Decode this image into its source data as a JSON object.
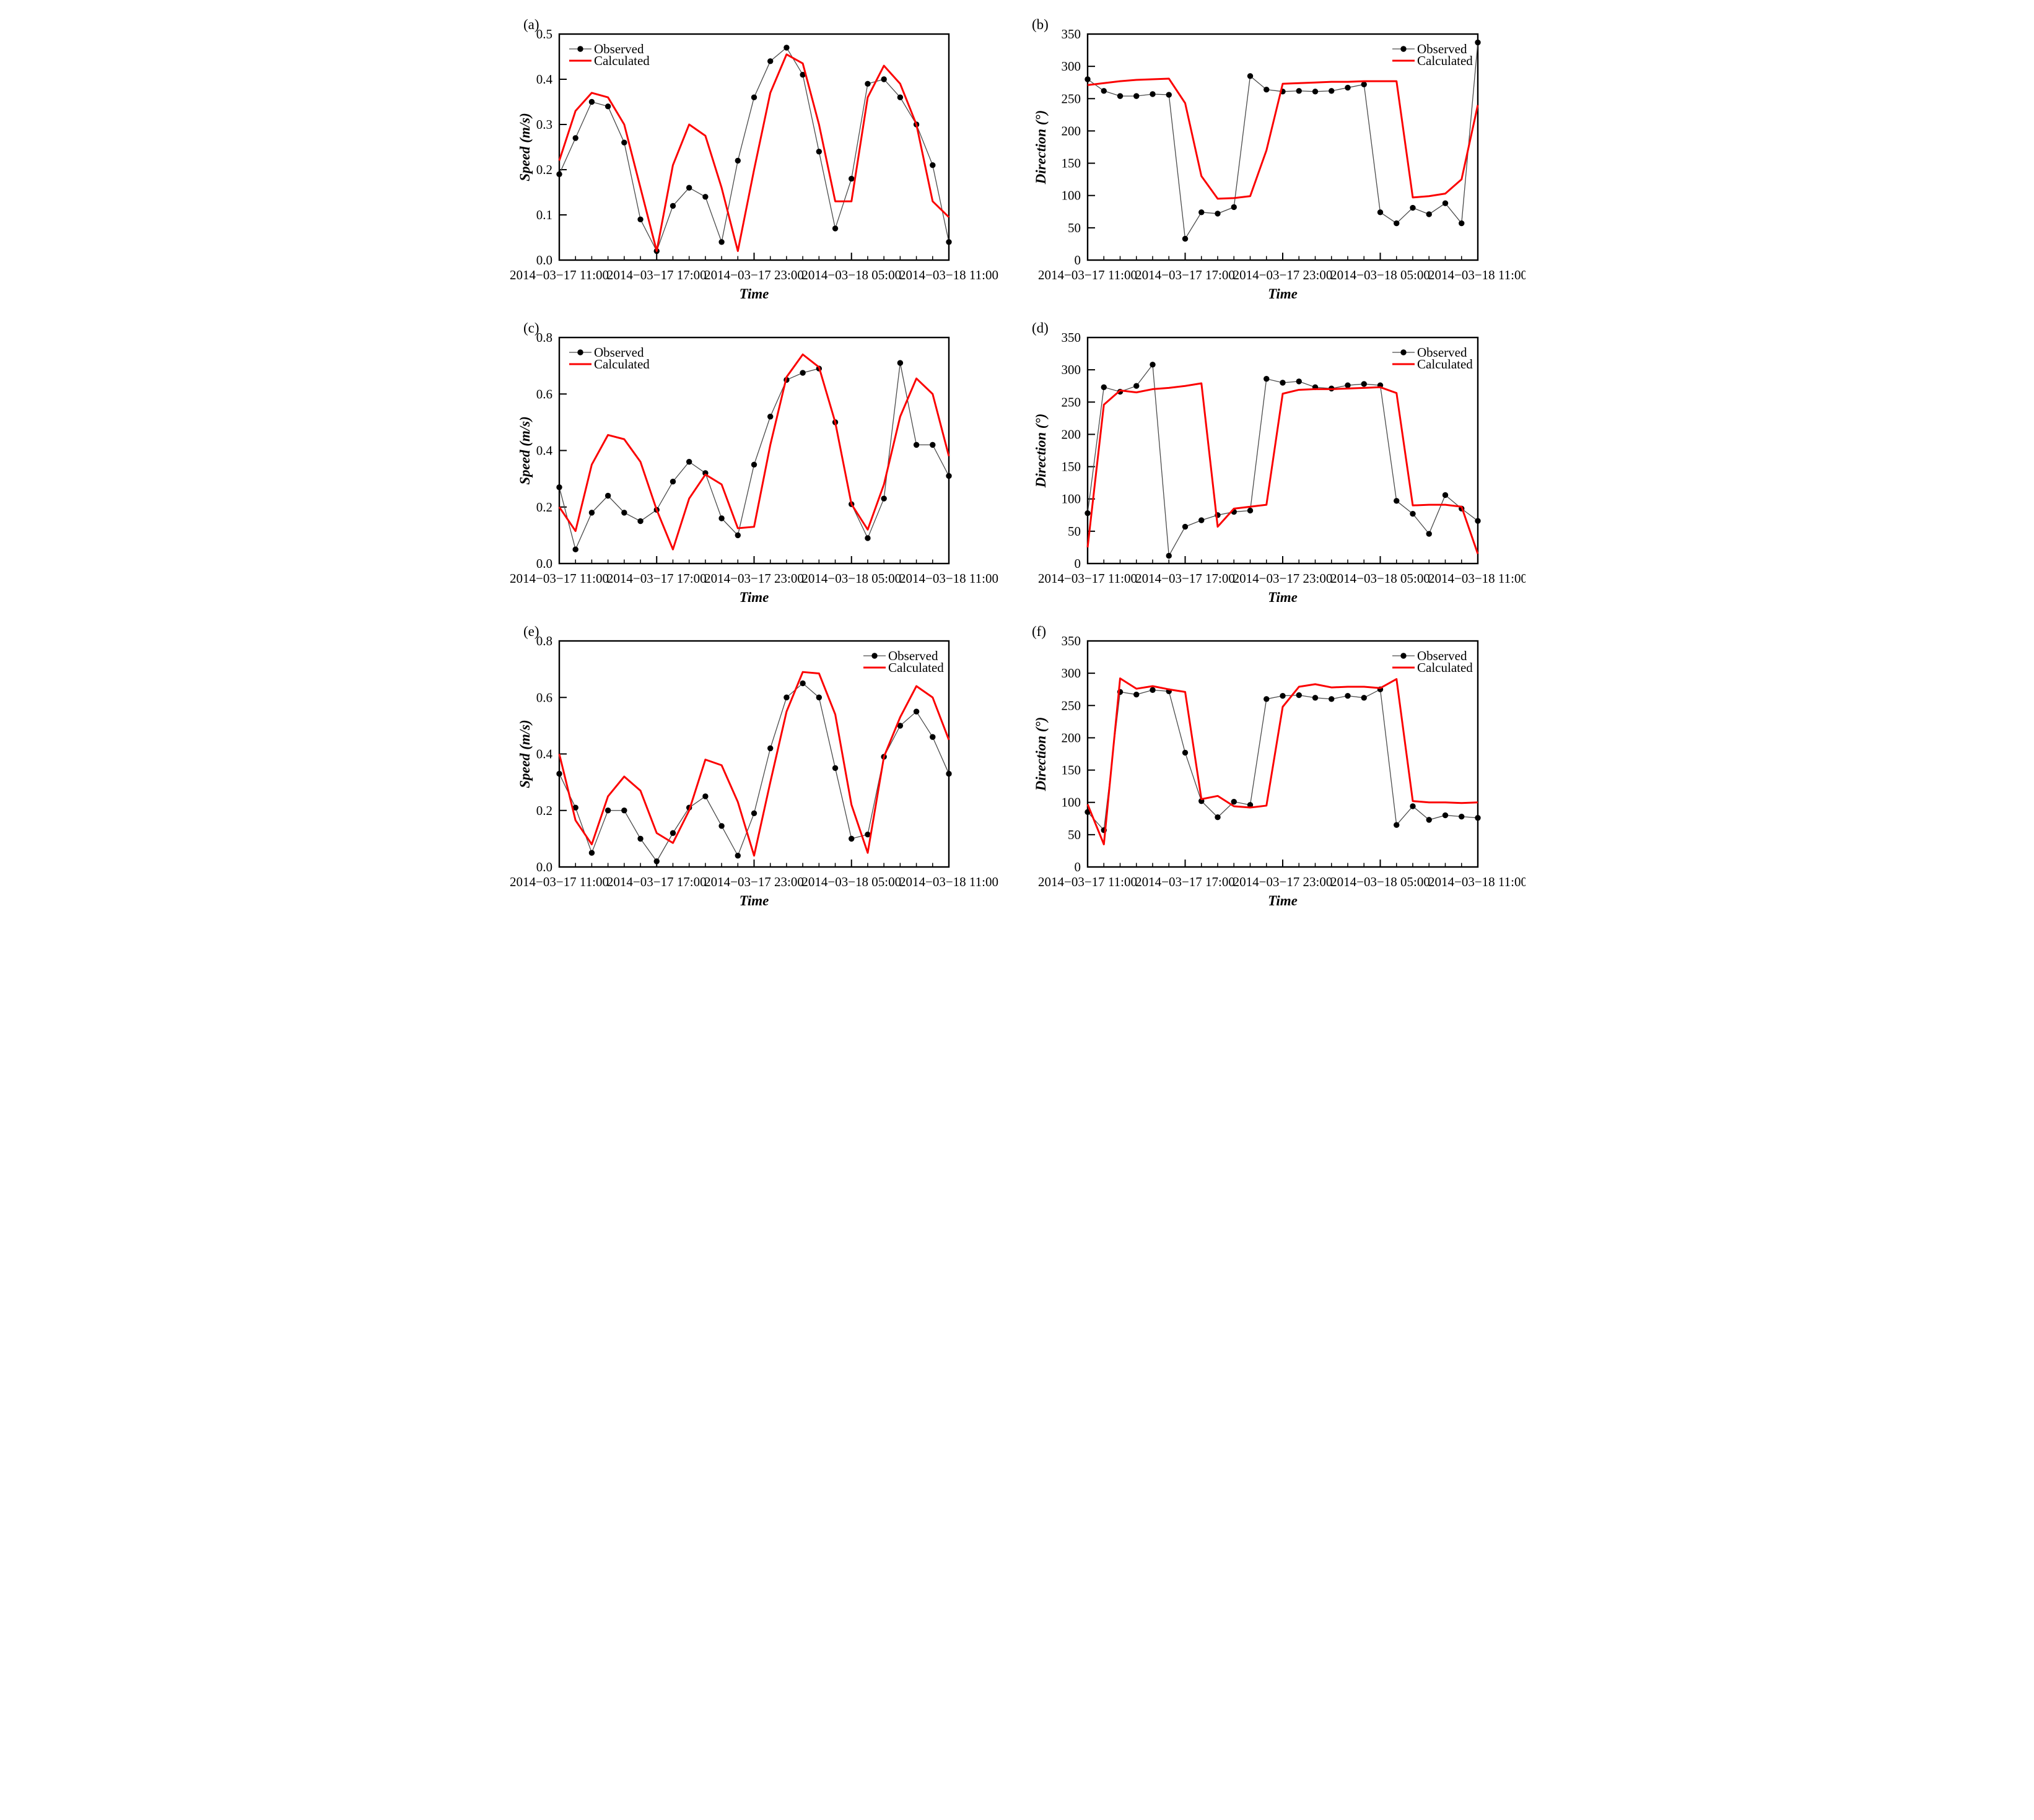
{
  "figure_caption": "",
  "series_legend": {
    "observed_label": "Observed",
    "calculated_label": "Calculated"
  },
  "colors": {
    "calculated_red": "#fb0000",
    "observed_line_gray": "#4a4a4a",
    "marker_black": "#000000",
    "axis_black": "#000000",
    "background": "#ffffff"
  },
  "x_axis": {
    "label": "Time",
    "data_start": "2014-03-17 11:00",
    "data_interval_hours": 1,
    "range_hours": [
      0,
      24
    ],
    "major_tick_hours": [
      0,
      6,
      12,
      18,
      24
    ],
    "minor_tick_step_hours": 1,
    "tick_labels": [
      "2014−03−17 11:00",
      "2014−03−17 17:00",
      "2014−03−17 23:00",
      "2014−03−18 05:00",
      "2014−03−18 11:00"
    ]
  },
  "chart_data": [
    {
      "panel": "(a)",
      "id": "a",
      "type": "line",
      "column": "left",
      "ylabel": "Speed (m/s)",
      "xlabel": "Time",
      "ylim": [
        0,
        0.5
      ],
      "ytick_step": 0.1,
      "ytick_decimals": 1,
      "grid": false,
      "legend_position": "top-left",
      "series": [
        {
          "name": "Observed",
          "values": [
            0.19,
            0.27,
            0.35,
            0.34,
            0.26,
            0.09,
            0.02,
            0.12,
            0.16,
            0.14,
            0.04,
            0.22,
            0.36,
            0.44,
            0.47,
            0.41,
            0.24,
            0.07,
            0.18,
            0.39,
            0.4,
            0.36,
            0.3,
            0.21,
            0.04
          ]
        },
        {
          "name": "Calculated",
          "values": [
            0.22,
            0.33,
            0.37,
            0.36,
            0.3,
            0.16,
            0.02,
            0.21,
            0.3,
            0.275,
            0.16,
            0.02,
            0.2,
            0.37,
            0.455,
            0.435,
            0.3,
            0.13,
            0.13,
            0.36,
            0.43,
            0.39,
            0.3,
            0.13,
            0.095
          ]
        }
      ]
    },
    {
      "panel": "(b)",
      "id": "b",
      "type": "line",
      "column": "right",
      "ylabel": "Direction (°)",
      "xlabel": "Time",
      "ylim": [
        0,
        350
      ],
      "ytick_step": 50,
      "ytick_decimals": 0,
      "grid": false,
      "legend_position": "top-right",
      "series": [
        {
          "name": "Observed",
          "values": [
            280,
            262,
            254,
            254,
            257,
            256,
            33,
            74,
            72,
            82,
            285,
            264,
            261,
            262,
            261,
            262,
            267,
            272,
            74,
            57,
            81,
            71,
            88,
            57,
            337
          ]
        },
        {
          "name": "Calculated",
          "values": [
            271,
            274,
            277,
            279,
            280,
            281,
            243,
            130,
            95,
            96,
            99,
            170,
            273,
            274,
            275,
            276,
            276,
            277,
            277,
            277,
            97,
            99,
            103,
            125,
            240
          ]
        }
      ]
    },
    {
      "panel": "(c)",
      "id": "c",
      "type": "line",
      "column": "left",
      "ylabel": "Speed (m/s)",
      "xlabel": "Time",
      "ylim": [
        0,
        0.8
      ],
      "ytick_step": 0.2,
      "ytick_decimals": 1,
      "grid": false,
      "legend_position": "top-left",
      "series": [
        {
          "name": "Observed",
          "values": [
            0.27,
            0.05,
            0.18,
            0.24,
            0.18,
            0.15,
            0.19,
            0.29,
            0.36,
            0.32,
            0.16,
            0.1,
            0.35,
            0.52,
            0.65,
            0.675,
            0.69,
            0.5,
            0.21,
            0.09,
            0.23,
            0.71,
            0.42,
            0.42,
            0.31
          ]
        },
        {
          "name": "Calculated",
          "values": [
            0.2,
            0.115,
            0.35,
            0.455,
            0.44,
            0.36,
            0.19,
            0.05,
            0.23,
            0.315,
            0.28,
            0.125,
            0.13,
            0.42,
            0.66,
            0.74,
            0.695,
            0.5,
            0.21,
            0.12,
            0.28,
            0.52,
            0.655,
            0.6,
            0.38
          ]
        }
      ]
    },
    {
      "panel": "(d)",
      "id": "d",
      "type": "line",
      "column": "right",
      "ylabel": "Direction (°)",
      "xlabel": "Time",
      "ylim": [
        0,
        350
      ],
      "ytick_step": 50,
      "ytick_decimals": 0,
      "grid": false,
      "legend_position": "top-right",
      "series": [
        {
          "name": "Observed",
          "values": [
            78,
            273,
            266,
            275,
            308,
            12,
            57,
            67,
            75,
            80,
            82,
            286,
            280,
            282,
            273,
            271,
            276,
            278,
            276,
            97,
            77,
            46,
            106,
            85,
            66
          ]
        },
        {
          "name": "Calculated",
          "values": [
            25,
            246,
            268,
            265,
            270,
            272,
            275,
            279,
            57,
            85,
            88,
            91,
            263,
            269,
            270,
            270,
            271,
            272,
            273,
            264,
            90,
            91,
            91,
            88,
            15
          ]
        }
      ]
    },
    {
      "panel": "(e)",
      "id": "e",
      "type": "line",
      "column": "left",
      "ylabel": "Speed (m/s)",
      "xlabel": "Time",
      "ylim": [
        0,
        0.8
      ],
      "ytick_step": 0.2,
      "ytick_decimals": 1,
      "grid": false,
      "legend_position": "top-right",
      "series": [
        {
          "name": "Observed",
          "values": [
            0.33,
            0.21,
            0.05,
            0.2,
            0.2,
            0.1,
            0.02,
            0.12,
            0.21,
            0.25,
            0.145,
            0.04,
            0.19,
            0.42,
            0.6,
            0.65,
            0.6,
            0.35,
            0.1,
            0.115,
            0.39,
            0.5,
            0.55,
            0.46,
            0.33
          ]
        },
        {
          "name": "Calculated",
          "values": [
            0.4,
            0.165,
            0.08,
            0.25,
            0.32,
            0.27,
            0.12,
            0.085,
            0.2,
            0.38,
            0.36,
            0.23,
            0.04,
            0.3,
            0.55,
            0.69,
            0.685,
            0.54,
            0.22,
            0.05,
            0.39,
            0.53,
            0.64,
            0.6,
            0.45
          ]
        }
      ]
    },
    {
      "panel": "(f)",
      "id": "f",
      "type": "line",
      "column": "right",
      "ylabel": "Direction (°)",
      "xlabel": "Time",
      "ylim": [
        0,
        350
      ],
      "ytick_step": 50,
      "ytick_decimals": 0,
      "grid": false,
      "legend_position": "top-right",
      "series": [
        {
          "name": "Observed",
          "values": [
            85,
            57,
            271,
            267,
            274,
            272,
            177,
            102,
            77,
            101,
            96,
            260,
            265,
            266,
            262,
            260,
            265,
            262,
            275,
            65,
            94,
            73,
            80,
            78,
            76
          ]
        },
        {
          "name": "Calculated",
          "values": [
            97,
            35,
            292,
            276,
            280,
            275,
            271,
            105,
            110,
            94,
            92,
            95,
            248,
            279,
            283,
            278,
            279,
            279,
            277,
            291,
            102,
            100,
            100,
            99,
            100
          ]
        }
      ]
    }
  ]
}
